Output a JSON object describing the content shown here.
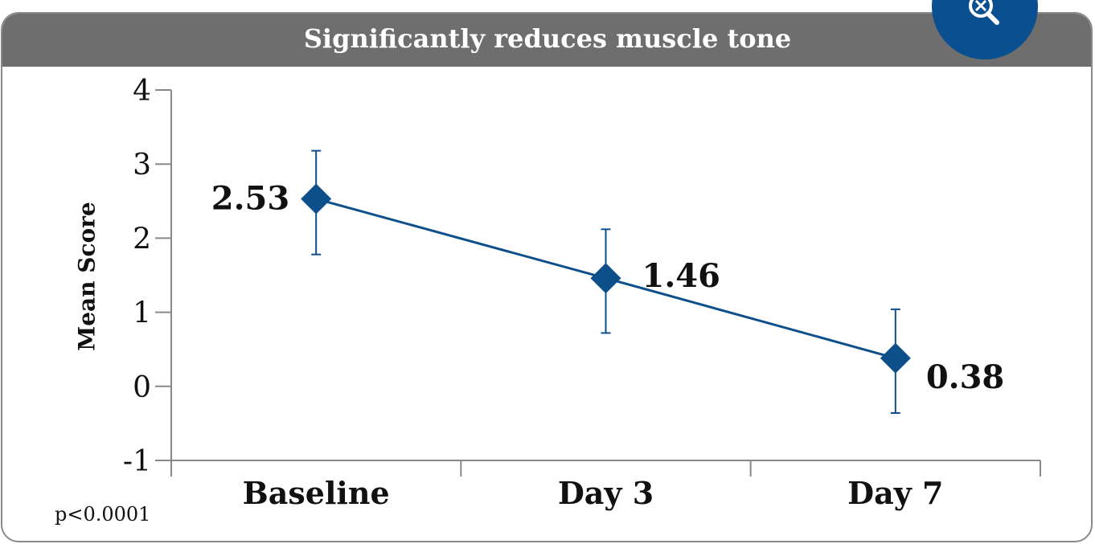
{
  "chart_data": {
    "type": "line",
    "title": "Significantly reduces muscle tone",
    "xlabel": "",
    "ylabel": "Mean Score",
    "categories": [
      "Baseline",
      "Day 3",
      "Day 7"
    ],
    "series": [
      {
        "values": [
          2.53,
          1.46,
          0.38
        ],
        "error_upper": [
          3.18,
          2.12,
          1.04
        ],
        "error_lower": [
          1.78,
          0.72,
          -0.36
        ],
        "data_labels": [
          "2.53",
          "1.46",
          "0.38"
        ]
      }
    ],
    "ylim": [
      -1,
      4
    ],
    "yticks": [
      "4",
      "3",
      "2",
      "1",
      "0",
      "-1"
    ],
    "grid": false,
    "legend": "none",
    "marker": "diamond",
    "series_color": "#0d4f8b",
    "footnote": "p<0.0001"
  },
  "header": {
    "background": "#6e6e6e"
  },
  "zoom_button": {
    "icon": "zoom-out-icon",
    "color": "#0d5aa0"
  }
}
